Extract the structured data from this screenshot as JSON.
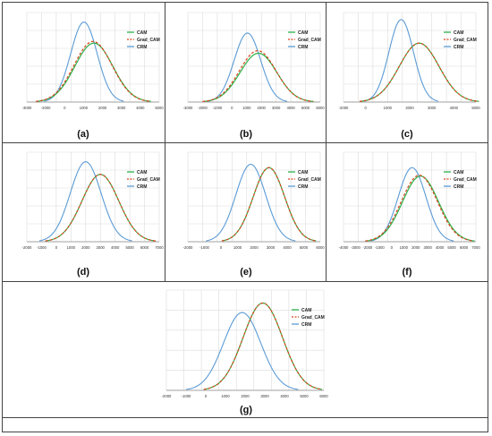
{
  "colors": {
    "CAM": "#2db24a",
    "Grad_CAM": "#d9451c",
    "CRM": "#5b9bd5",
    "grid": "#dcdcdc",
    "axis": "#888888"
  },
  "chart_data": [
    {
      "type": "line",
      "label": "(a)",
      "xlim": [
        -3000,
        5000
      ],
      "ticks": [
        -3000,
        -2000,
        0,
        1000,
        2000,
        3000,
        4000,
        5000
      ],
      "legend_placement": "top-right",
      "series": [
        {
          "name": "CAM",
          "mean": 1050,
          "sd": 1150,
          "peak": 0.7
        },
        {
          "name": "Grad_CAM",
          "mean": 1000,
          "sd": 1150,
          "peak": 0.72
        },
        {
          "name": "CRM",
          "mean": 450,
          "sd": 800,
          "peak": 0.95
        }
      ]
    },
    {
      "type": "line",
      "label": "(b)",
      "xlim": [
        -3000,
        6000
      ],
      "ticks": [
        -3000,
        -2000,
        -1000,
        0,
        1000,
        2000,
        3000,
        4000,
        5000,
        6000
      ],
      "legend_placement": "top-right",
      "series": [
        {
          "name": "CAM",
          "mean": 1800,
          "sd": 1250,
          "peak": 0.58
        },
        {
          "name": "Grad_CAM",
          "mean": 1750,
          "sd": 1250,
          "peak": 0.61
        },
        {
          "name": "CRM",
          "mean": 1050,
          "sd": 900,
          "peak": 0.82
        }
      ]
    },
    {
      "type": "line",
      "label": "(c)",
      "xlim": [
        -2000,
        5000
      ],
      "ticks": [
        -2000,
        0,
        1000,
        2000,
        3000,
        4000,
        5000
      ],
      "legend_placement": "top-right",
      "series": [
        {
          "name": "CAM",
          "mean": 2000,
          "sd": 1050,
          "peak": 0.7
        },
        {
          "name": "Grad_CAM",
          "mean": 2000,
          "sd": 1050,
          "peak": 0.7
        },
        {
          "name": "CRM",
          "mean": 1050,
          "sd": 650,
          "peak": 0.98
        }
      ]
    },
    {
      "type": "line",
      "label": "(d)",
      "xlim": [
        -2000,
        7000
      ],
      "ticks": [
        -2000,
        -1000,
        0,
        1000,
        2000,
        3000,
        4000,
        5000,
        6000,
        7000
      ],
      "legend_placement": "top-right",
      "series": [
        {
          "name": "CAM",
          "mean": 3000,
          "sd": 1250,
          "peak": 0.8
        },
        {
          "name": "Grad_CAM",
          "mean": 3000,
          "sd": 1250,
          "peak": 0.8
        },
        {
          "name": "CRM",
          "mean": 2000,
          "sd": 1050,
          "peak": 0.95
        }
      ]
    },
    {
      "type": "line",
      "label": "(e)",
      "xlim": [
        -2000,
        6000
      ],
      "ticks": [
        -2000,
        -1000,
        0,
        1000,
        2000,
        3000,
        4000,
        5000,
        6000
      ],
      "legend_placement": "top-right",
      "series": [
        {
          "name": "CAM",
          "mean": 2900,
          "sd": 950,
          "peak": 0.88
        },
        {
          "name": "Grad_CAM",
          "mean": 2900,
          "sd": 950,
          "peak": 0.88
        },
        {
          "name": "CRM",
          "mean": 1800,
          "sd": 900,
          "peak": 0.92
        }
      ]
    },
    {
      "type": "line",
      "label": "(f)",
      "xlim": [
        -4000,
        7000
      ],
      "ticks": [
        -4000,
        -3000,
        -2000,
        -1000,
        0,
        1000,
        2000,
        3000,
        4000,
        5000,
        6000,
        7000
      ],
      "legend_placement": "top-right",
      "series": [
        {
          "name": "CAM",
          "mean": 2400,
          "sd": 1500,
          "peak": 0.78
        },
        {
          "name": "Grad_CAM",
          "mean": 2300,
          "sd": 1500,
          "peak": 0.79
        },
        {
          "name": "CRM",
          "mean": 1700,
          "sd": 1150,
          "peak": 0.88
        }
      ]
    },
    {
      "type": "line",
      "label": "(g)",
      "xlim": [
        -2000,
        6000
      ],
      "ticks": [
        -2000,
        -1000,
        0,
        1000,
        2000,
        3000,
        4000,
        5000,
        6000
      ],
      "legend_placement": "top-right",
      "series": [
        {
          "name": "CAM",
          "mean": 2900,
          "sd": 1000,
          "peak": 0.92
        },
        {
          "name": "Grad_CAM",
          "mean": 2900,
          "sd": 1000,
          "peak": 0.92
        },
        {
          "name": "CRM",
          "mean": 1850,
          "sd": 950,
          "peak": 0.82
        }
      ]
    }
  ]
}
